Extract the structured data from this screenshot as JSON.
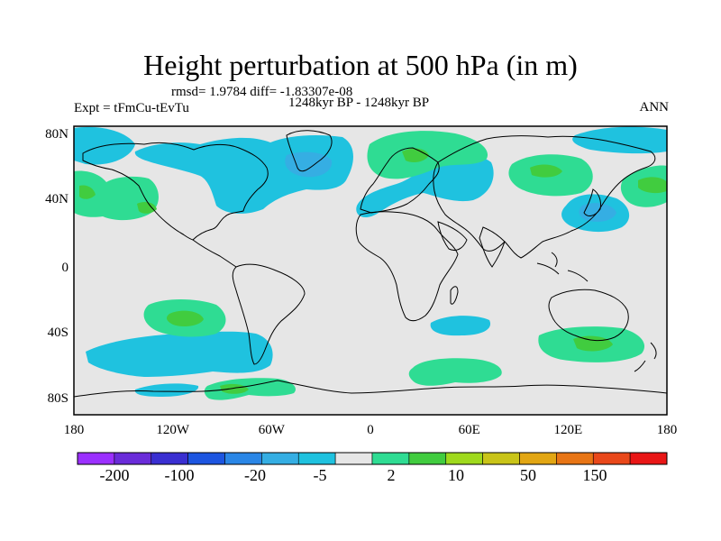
{
  "title": "Height perturbation at 500 hPa (in m)",
  "stats": "rmsd= 1.9784 diff= -1.83307e-08",
  "experiment": "Expt = tFmCu-tEvTu",
  "period": "1248kyr BP - 1248kyr BP",
  "season": "ANN",
  "x_ticks": [
    "180",
    "120W",
    "60W",
    "0",
    "60E",
    "120E",
    "180"
  ],
  "y_ticks": [
    "80N",
    "40N",
    "0",
    "40S",
    "80S"
  ],
  "colorbar": {
    "colors": [
      "#9b30ff",
      "#6a2cd9",
      "#3a2fd1",
      "#1d55e0",
      "#2a86e6",
      "#35aee3",
      "#1fc2df",
      "#e6e6e6",
      "#2fdc93",
      "#41cc3f",
      "#9fd91d",
      "#c9c418",
      "#e2a613",
      "#e87515",
      "#e9481a",
      "#e91616"
    ],
    "tick_labels": [
      "-200",
      "-100",
      "-20",
      "-5",
      "2",
      "10",
      "50",
      "150"
    ]
  },
  "map_colors": {
    "background": "#e6e6e6",
    "neg_light": "#1fc2df",
    "neg_mid": "#35aee3",
    "pos_light": "#2fdc93",
    "pos_mid": "#41cc3f",
    "coast": "#000000"
  }
}
